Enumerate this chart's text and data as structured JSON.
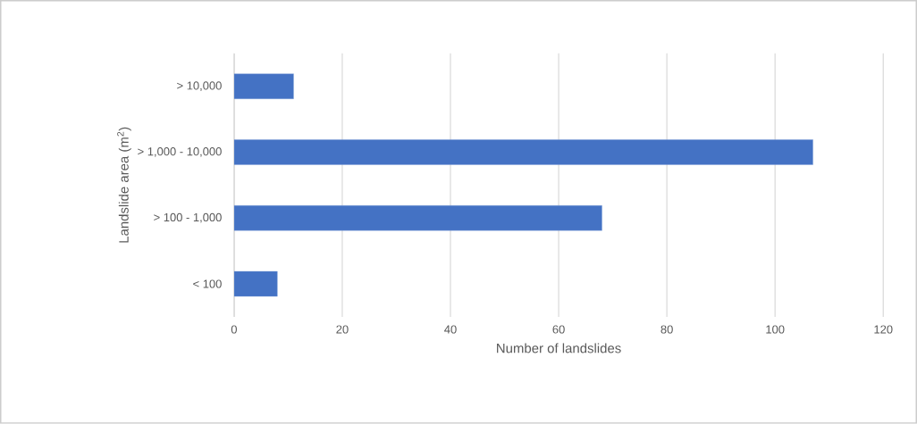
{
  "chart_data": {
    "type": "bar",
    "orientation": "horizontal",
    "categories": [
      "> 10,000",
      "> 1,000 - 10,000",
      "> 100 - 1,000",
      "< 100"
    ],
    "values": [
      11,
      107,
      68,
      8
    ],
    "color": "#4472c4",
    "xlim": [
      0,
      120
    ],
    "xticks": [
      0,
      20,
      40,
      60,
      80,
      100,
      120
    ],
    "grid": "x",
    "xlabel": "Number of landslides",
    "ylabel": "Landslide area (m$^{2}$)"
  }
}
